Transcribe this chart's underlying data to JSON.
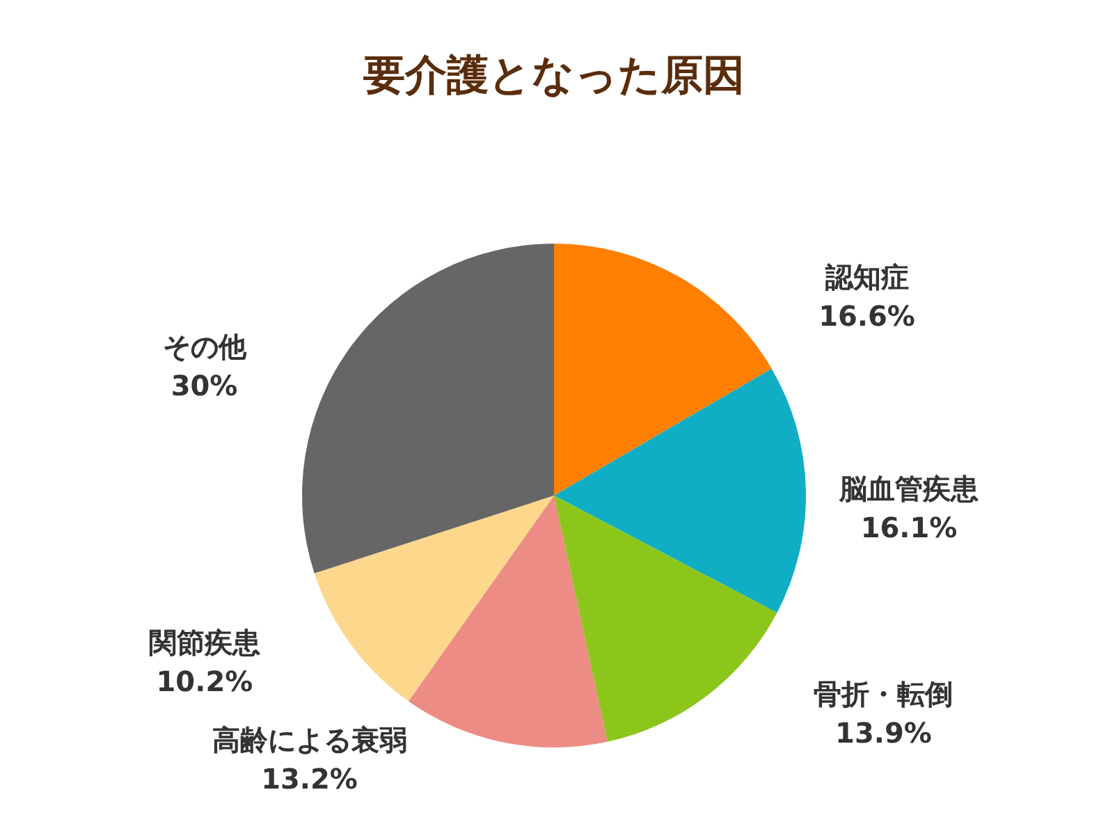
{
  "chart_data": {
    "type": "pie",
    "title": "要介護となった原因",
    "categories": [
      "認知症",
      "脳血管疾患",
      "骨折・転倒",
      "高齢による衰弱",
      "関節疾患",
      "その他"
    ],
    "values": [
      16.6,
      16.1,
      13.9,
      13.2,
      10.2,
      30
    ],
    "colors": [
      "#ff8000",
      "#10aec4",
      "#8cc61a",
      "#ec8c84",
      "#fcd78c",
      "#666666"
    ],
    "value_labels": [
      "16.6%",
      "16.1%",
      "13.9%",
      "13.2%",
      "10.2%",
      "30%"
    ],
    "legend": false
  }
}
